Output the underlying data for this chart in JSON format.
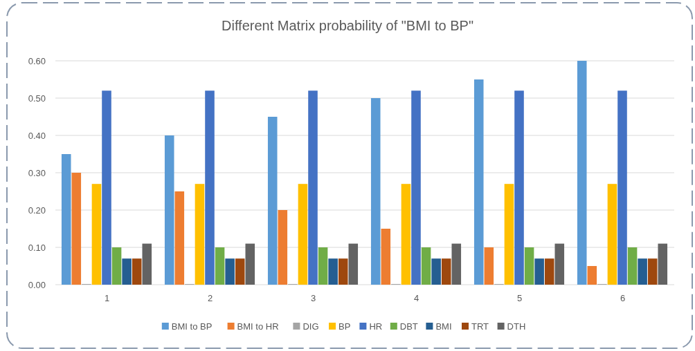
{
  "chart_data": {
    "type": "bar",
    "title": "Different Matrix probability of \"BMI to BP\"",
    "categories": [
      "1",
      "2",
      "3",
      "4",
      "5",
      "6"
    ],
    "series": [
      {
        "name": "BMI to BP",
        "color": "#5b9bd5",
        "values": [
          0.35,
          0.4,
          0.45,
          0.5,
          0.55,
          0.6
        ]
      },
      {
        "name": "BMI to HR",
        "color": "#ed7d31",
        "values": [
          0.3,
          0.25,
          0.2,
          0.15,
          0.1,
          0.05
        ]
      },
      {
        "name": "DIG",
        "color": "#a5a5a5",
        "values": [
          0,
          0,
          0,
          0,
          0,
          0
        ]
      },
      {
        "name": "BP",
        "color": "#ffc000",
        "values": [
          0.27,
          0.27,
          0.27,
          0.27,
          0.27,
          0.27
        ]
      },
      {
        "name": "HR",
        "color": "#4472c4",
        "values": [
          0.52,
          0.52,
          0.52,
          0.52,
          0.52,
          0.52
        ]
      },
      {
        "name": "DBT",
        "color": "#70ad47",
        "values": [
          0.1,
          0.1,
          0.1,
          0.1,
          0.1,
          0.1
        ]
      },
      {
        "name": "BMI",
        "color": "#255e91",
        "values": [
          0.07,
          0.07,
          0.07,
          0.07,
          0.07,
          0.07
        ]
      },
      {
        "name": "TRT",
        "color": "#9e480e",
        "values": [
          0.07,
          0.07,
          0.07,
          0.07,
          0.07,
          0.07
        ]
      },
      {
        "name": "DTH",
        "color": "#636363",
        "values": [
          0.11,
          0.11,
          0.11,
          0.11,
          0.11,
          0.11
        ]
      }
    ],
    "ylim": [
      0,
      0.6
    ],
    "yticks": [
      {
        "value": 0,
        "label": "0.00"
      },
      {
        "value": 0.1,
        "label": "0.10"
      },
      {
        "value": 0.2,
        "label": "0.20"
      },
      {
        "value": 0.3,
        "label": "0.30"
      },
      {
        "value": 0.4,
        "label": "0.40"
      },
      {
        "value": 0.5,
        "label": "0.50"
      },
      {
        "value": 0.6,
        "label": "0.60"
      }
    ],
    "grid": "y",
    "legend": "bottom"
  }
}
